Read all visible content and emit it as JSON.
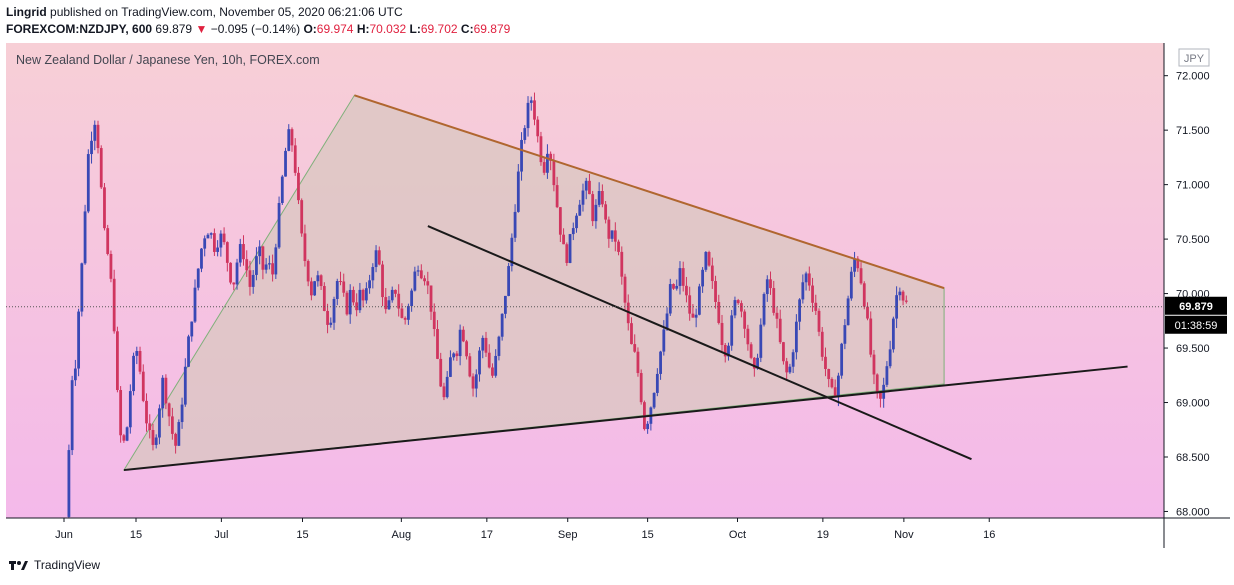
{
  "header": {
    "author": "Lingrid",
    "published": "published on TradingView.com, November 05, 2020 06:21:06 UTC",
    "symbol": "FOREXCOM:NZDJPY",
    "interval": "600",
    "last": "69.879",
    "arrow": "▼",
    "change": "−0.095 (−0.14%)",
    "o_label": "O:",
    "o": "69.974",
    "h_label": "H:",
    "h": "70.032",
    "l_label": "L:",
    "l": "69.702",
    "c_label": "C:",
    "c": "69.879"
  },
  "chart_data": {
    "type": "candlestick",
    "title": "New Zealand Dollar / Japanese Yen, 10h, FOREX.com",
    "currency": "JPY",
    "ylim": [
      67.94,
      72.3
    ],
    "xlim": [
      0,
      100
    ],
    "y_ticks": [
      "72.000",
      "71.500",
      "71.000",
      "70.500",
      "70.000",
      "69.500",
      "69.000",
      "68.500",
      "68.000"
    ],
    "x_ticks": [
      {
        "label": "Jun",
        "x": 0
      },
      {
        "label": "15",
        "x": 6.57
      },
      {
        "label": "Jul",
        "x": 14.36
      },
      {
        "label": "15",
        "x": 21.76
      },
      {
        "label": "Aug",
        "x": 30.78
      },
      {
        "label": "17",
        "x": 38.58
      },
      {
        "label": "Sep",
        "x": 45.96
      },
      {
        "label": "15",
        "x": 53.25
      },
      {
        "label": "Oct",
        "x": 61.45
      },
      {
        "label": "19",
        "x": 69.24
      },
      {
        "label": "Nov",
        "x": 76.63
      },
      {
        "label": "16",
        "x": 84.42
      }
    ],
    "price_label": "69.879",
    "countdown_label": "01:38:59",
    "last_price": 69.879,
    "background": [
      "#f7cfd6",
      "#f4b9ea"
    ],
    "triangle_fill": "#d9c7c0",
    "colors": {
      "up": "#3948b5",
      "down": "#d0355f",
      "upper_trendline": "#b0662f",
      "lower_trendline": "#1a1a1a",
      "triangle_edge": "#7fb07a"
    },
    "drawings": {
      "triangle": [
        [
          5.47,
          68.38
        ],
        [
          26.5,
          71.82
        ],
        [
          80.3,
          70.05
        ],
        [
          80.3,
          69.17
        ]
      ],
      "lower_trendline": [
        [
          5.47,
          68.38
        ],
        [
          97.04,
          69.33
        ]
      ],
      "upper_trendline": [
        [
          26.5,
          71.82
        ],
        [
          80.3,
          70.05
        ]
      ],
      "descending_line": [
        [
          33.2,
          70.62
        ],
        [
          82.8,
          68.48
        ]
      ]
    },
    "anchors": [
      [
        0.3,
        67.95
      ],
      [
        0.6,
        69.2
      ],
      [
        1.0,
        69.3
      ],
      [
        1.3,
        69.8
      ],
      [
        1.8,
        70.5
      ],
      [
        2.1,
        71.2
      ],
      [
        2.5,
        71.45
      ],
      [
        2.8,
        71.6
      ],
      [
        3.2,
        71.3
      ],
      [
        3.6,
        70.6
      ],
      [
        4.0,
        70.35
      ],
      [
        4.4,
        70.0
      ],
      [
        4.7,
        69.5
      ],
      [
        5.0,
        68.75
      ],
      [
        5.4,
        68.6
      ],
      [
        5.8,
        68.8
      ],
      [
        6.2,
        69.3
      ],
      [
        6.6,
        69.5
      ],
      [
        7.0,
        69.25
      ],
      [
        7.4,
        68.9
      ],
      [
        7.8,
        68.7
      ],
      [
        8.2,
        68.55
      ],
      [
        8.6,
        68.9
      ],
      [
        9.0,
        69.2
      ],
      [
        9.4,
        69.0
      ],
      [
        9.8,
        68.75
      ],
      [
        10.2,
        68.6
      ],
      [
        10.6,
        68.85
      ],
      [
        11.0,
        69.25
      ],
      [
        11.4,
        69.6
      ],
      [
        11.8,
        69.9
      ],
      [
        12.2,
        70.2
      ],
      [
        12.6,
        70.45
      ],
      [
        13.0,
        70.6
      ],
      [
        13.4,
        70.55
      ],
      [
        13.8,
        70.4
      ],
      [
        14.2,
        70.55
      ],
      [
        14.6,
        70.45
      ],
      [
        15.0,
        70.25
      ],
      [
        15.4,
        70.05
      ],
      [
        15.8,
        70.3
      ],
      [
        16.2,
        70.45
      ],
      [
        16.6,
        70.25
      ],
      [
        17.0,
        70.05
      ],
      [
        17.4,
        70.25
      ],
      [
        17.8,
        70.4
      ],
      [
        18.2,
        70.2
      ],
      [
        18.6,
        70.3
      ],
      [
        19.0,
        70.15
      ],
      [
        19.4,
        70.55
      ],
      [
        19.8,
        70.95
      ],
      [
        20.2,
        71.3
      ],
      [
        20.6,
        71.5
      ],
      [
        21.0,
        71.25
      ],
      [
        21.4,
        70.8
      ],
      [
        21.8,
        70.4
      ],
      [
        22.2,
        70.2
      ],
      [
        22.6,
        70.0
      ],
      [
        23.0,
        70.2
      ],
      [
        23.4,
        70.05
      ],
      [
        23.8,
        69.85
      ],
      [
        24.2,
        69.7
      ],
      [
        24.6,
        69.95
      ],
      [
        25.0,
        70.15
      ],
      [
        25.4,
        70.0
      ],
      [
        25.8,
        69.85
      ],
      [
        26.2,
        70.05
      ],
      [
        26.6,
        69.85
      ],
      [
        27.0,
        70.0
      ],
      [
        27.4,
        69.9
      ],
      [
        27.8,
        70.1
      ],
      [
        28.2,
        70.3
      ],
      [
        28.6,
        70.4
      ],
      [
        29.0,
        70.05
      ],
      [
        29.4,
        69.8
      ],
      [
        29.8,
        69.95
      ],
      [
        30.2,
        70.05
      ],
      [
        30.6,
        69.85
      ],
      [
        31.0,
        69.7
      ],
      [
        31.4,
        69.9
      ],
      [
        31.8,
        70.05
      ],
      [
        32.2,
        70.3
      ],
      [
        32.6,
        70.2
      ],
      [
        33.0,
        70.15
      ],
      [
        33.4,
        69.95
      ],
      [
        33.8,
        69.6
      ],
      [
        34.2,
        69.3
      ],
      [
        34.6,
        69.0
      ],
      [
        35.0,
        69.2
      ],
      [
        35.4,
        69.5
      ],
      [
        35.8,
        69.45
      ],
      [
        36.2,
        69.7
      ],
      [
        36.6,
        69.55
      ],
      [
        37.0,
        69.3
      ],
      [
        37.4,
        69.1
      ],
      [
        37.8,
        69.4
      ],
      [
        38.2,
        69.6
      ],
      [
        38.6,
        69.45
      ],
      [
        39.0,
        69.2
      ],
      [
        39.4,
        69.4
      ],
      [
        39.8,
        69.65
      ],
      [
        40.2,
        69.95
      ],
      [
        40.6,
        70.25
      ],
      [
        41.0,
        70.65
      ],
      [
        41.4,
        71.05
      ],
      [
        41.8,
        71.4
      ],
      [
        42.2,
        71.65
      ],
      [
        42.6,
        71.8
      ],
      [
        43.0,
        71.6
      ],
      [
        43.4,
        71.3
      ],
      [
        43.8,
        71.15
      ],
      [
        44.2,
        71.4
      ],
      [
        44.6,
        71.1
      ],
      [
        45.0,
        70.8
      ],
      [
        45.4,
        70.5
      ],
      [
        45.8,
        70.3
      ],
      [
        46.2,
        70.5
      ],
      [
        46.6,
        70.7
      ],
      [
        47.0,
        70.85
      ],
      [
        47.4,
        70.95
      ],
      [
        47.8,
        71.0
      ],
      [
        48.2,
        70.7
      ],
      [
        48.6,
        70.8
      ],
      [
        49.0,
        70.95
      ],
      [
        49.4,
        70.65
      ],
      [
        49.8,
        70.5
      ],
      [
        50.2,
        70.55
      ],
      [
        50.6,
        70.35
      ],
      [
        51.0,
        70.05
      ],
      [
        51.4,
        69.75
      ],
      [
        51.8,
        69.5
      ],
      [
        52.2,
        69.4
      ],
      [
        52.6,
        69.1
      ],
      [
        53.0,
        68.75
      ],
      [
        53.4,
        68.9
      ],
      [
        53.8,
        69.1
      ],
      [
        54.2,
        69.35
      ],
      [
        54.6,
        69.55
      ],
      [
        55.0,
        69.8
      ],
      [
        55.4,
        70.1
      ],
      [
        55.8,
        70.0
      ],
      [
        56.2,
        70.2
      ],
      [
        56.6,
        70.05
      ],
      [
        57.0,
        69.85
      ],
      [
        57.4,
        69.75
      ],
      [
        57.8,
        69.9
      ],
      [
        58.2,
        70.15
      ],
      [
        58.6,
        70.35
      ],
      [
        59.0,
        70.15
      ],
      [
        59.4,
        69.95
      ],
      [
        59.8,
        69.75
      ],
      [
        60.2,
        69.45
      ],
      [
        60.6,
        69.55
      ],
      [
        61.0,
        69.8
      ],
      [
        61.4,
        70.0
      ],
      [
        61.8,
        69.85
      ],
      [
        62.2,
        69.7
      ],
      [
        62.6,
        69.4
      ],
      [
        63.0,
        69.25
      ],
      [
        63.4,
        69.55
      ],
      [
        63.8,
        69.9
      ],
      [
        64.2,
        70.15
      ],
      [
        64.6,
        69.95
      ],
      [
        65.0,
        69.75
      ],
      [
        65.4,
        69.5
      ],
      [
        65.8,
        69.25
      ],
      [
        66.2,
        69.3
      ],
      [
        66.6,
        69.55
      ],
      [
        67.0,
        69.85
      ],
      [
        67.4,
        70.1
      ],
      [
        67.8,
        70.2
      ],
      [
        68.2,
        70.0
      ],
      [
        68.6,
        69.85
      ],
      [
        69.0,
        69.55
      ],
      [
        69.4,
        69.35
      ],
      [
        69.8,
        69.15
      ],
      [
        70.2,
        69.05
      ],
      [
        70.6,
        69.2
      ],
      [
        71.0,
        69.55
      ],
      [
        71.4,
        69.85
      ],
      [
        71.8,
        70.15
      ],
      [
        72.2,
        70.35
      ],
      [
        72.6,
        70.2
      ],
      [
        73.0,
        69.95
      ],
      [
        73.4,
        69.65
      ],
      [
        73.8,
        69.25
      ],
      [
        74.2,
        69.05
      ],
      [
        74.6,
        69.0
      ],
      [
        75.0,
        69.3
      ],
      [
        75.4,
        69.55
      ],
      [
        75.8,
        69.9
      ],
      [
        76.2,
        70.1
      ],
      [
        76.6,
        69.95
      ],
      [
        77.0,
        69.88
      ]
    ]
  }
}
